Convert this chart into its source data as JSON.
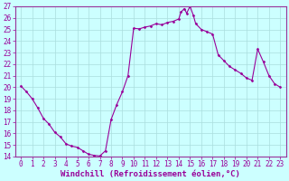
{
  "x": [
    0,
    0.5,
    1,
    1.5,
    2,
    2.5,
    3,
    3.5,
    4,
    4.5,
    5,
    5.5,
    6,
    6.5,
    7,
    7.5,
    8,
    8.5,
    9,
    9.5,
    10,
    10.5,
    11,
    11.5,
    12,
    12.5,
    13,
    13.5,
    14,
    14.2,
    14.5,
    14.7,
    15,
    15.3,
    15.5,
    16,
    16.5,
    17,
    17.5,
    18,
    18.5,
    19,
    19.5,
    20,
    20.5,
    21,
    21.5,
    22,
    22.5,
    23
  ],
  "y": [
    20.1,
    19.6,
    19.0,
    18.2,
    17.3,
    16.8,
    16.1,
    15.7,
    15.1,
    14.9,
    14.8,
    14.5,
    14.2,
    14.1,
    14.05,
    14.5,
    17.2,
    18.5,
    19.6,
    21.0,
    25.1,
    25.05,
    25.2,
    25.3,
    25.5,
    25.4,
    25.6,
    25.7,
    25.9,
    26.5,
    26.8,
    26.4,
    27.0,
    26.2,
    25.5,
    25.0,
    24.8,
    24.6,
    22.8,
    22.3,
    21.8,
    21.5,
    21.2,
    20.8,
    20.6,
    23.3,
    22.2,
    21.0,
    20.3,
    20.0
  ],
  "line_color": "#990099",
  "marker": "D",
  "marker_size": 1.5,
  "bg_color": "#ccffff",
  "grid_color": "#aadddd",
  "xlabel": "Windchill (Refroidissement éolien,°C)",
  "ylim": [
    14,
    27
  ],
  "xlim": [
    -0.5,
    23.5
  ],
  "yticks": [
    14,
    15,
    16,
    17,
    18,
    19,
    20,
    21,
    22,
    23,
    24,
    25,
    26,
    27
  ],
  "xticks": [
    0,
    1,
    2,
    3,
    4,
    5,
    6,
    7,
    8,
    9,
    10,
    11,
    12,
    13,
    14,
    15,
    16,
    17,
    18,
    19,
    20,
    21,
    22,
    23
  ],
  "tick_fontsize": 5.5,
  "xlabel_fontsize": 6.5,
  "spine_color": "#993399",
  "lw": 0.8
}
